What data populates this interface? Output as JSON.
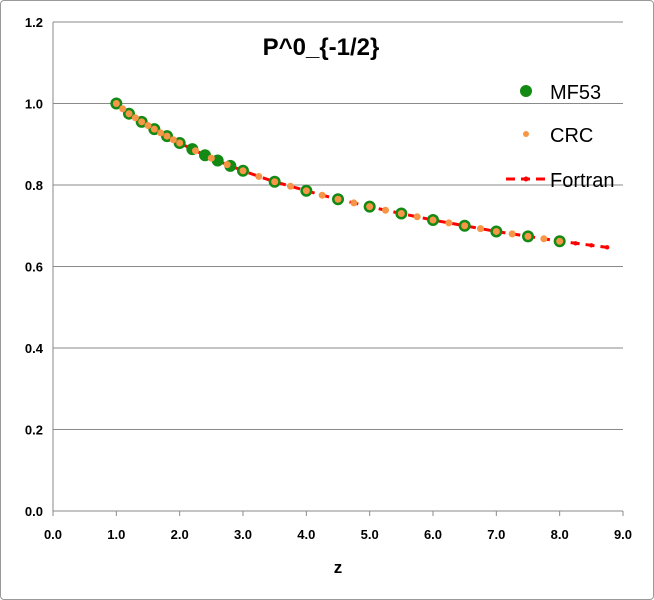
{
  "chart_data": {
    "type": "scatter",
    "title": "P^0_{-1/2}",
    "xlabel": "z",
    "ylabel": "",
    "xlim": [
      0,
      9
    ],
    "ylim": [
      0,
      1.2
    ],
    "xticks": [
      "0.0",
      "1.0",
      "2.0",
      "3.0",
      "4.0",
      "5.0",
      "6.0",
      "7.0",
      "8.0",
      "9.0"
    ],
    "yticks": [
      "0.0",
      "0.2",
      "0.4",
      "0.6",
      "0.8",
      "1.0",
      "1.2"
    ],
    "grid": "horizontal",
    "legend": "right",
    "series": [
      {
        "name": "MF53",
        "style": "marker",
        "color": "#138a13",
        "x": [
          1.0,
          1.2,
          1.4,
          1.6,
          1.8,
          2.0,
          2.2,
          2.4,
          2.6,
          2.8,
          3.0,
          3.5,
          4.0,
          4.5,
          5.0,
          5.5,
          6.0,
          6.5,
          7.0,
          7.5,
          8.0
        ],
        "y": [
          1.0,
          0.975,
          0.955,
          0.937,
          0.92,
          0.903,
          0.888,
          0.873,
          0.86,
          0.847,
          0.835,
          0.808,
          0.786,
          0.765,
          0.747,
          0.73,
          0.714,
          0.7,
          0.686,
          0.674,
          0.662
        ]
      },
      {
        "name": "CRC",
        "style": "marker",
        "color": "#f79646",
        "x": [
          1.0,
          1.1,
          1.2,
          1.3,
          1.4,
          1.5,
          1.6,
          1.7,
          1.8,
          1.9,
          2.0,
          2.25,
          2.5,
          2.75,
          3.0,
          3.25,
          3.5,
          3.75,
          4.0,
          4.25,
          4.5,
          4.75,
          5.0,
          5.25,
          5.5,
          5.75,
          6.0,
          6.25,
          6.5,
          6.75,
          7.0,
          7.25,
          7.5,
          7.75,
          8.0
        ],
        "y": [
          1.0,
          0.987,
          0.975,
          0.965,
          0.955,
          0.946,
          0.937,
          0.928,
          0.92,
          0.911,
          0.903,
          0.884,
          0.866,
          0.85,
          0.835,
          0.821,
          0.808,
          0.797,
          0.786,
          0.775,
          0.765,
          0.756,
          0.747,
          0.738,
          0.73,
          0.722,
          0.714,
          0.707,
          0.7,
          0.693,
          0.686,
          0.68,
          0.674,
          0.668,
          0.662
        ]
      },
      {
        "name": "Fortran",
        "style": "dashed-line",
        "color": "#ff0000",
        "x": [
          1.0,
          1.25,
          1.5,
          1.75,
          2.0,
          2.25,
          2.5,
          2.75,
          3.0,
          3.25,
          3.5,
          3.75,
          4.0,
          4.25,
          4.5,
          4.75,
          5.0,
          5.25,
          5.5,
          5.75,
          6.0,
          6.25,
          6.5,
          6.75,
          7.0,
          7.25,
          7.5,
          7.75,
          8.0,
          8.25,
          8.5,
          8.75
        ],
        "y": [
          1.0,
          0.97,
          0.946,
          0.924,
          0.903,
          0.884,
          0.866,
          0.85,
          0.835,
          0.821,
          0.808,
          0.797,
          0.786,
          0.775,
          0.765,
          0.756,
          0.747,
          0.738,
          0.73,
          0.722,
          0.714,
          0.707,
          0.7,
          0.693,
          0.686,
          0.68,
          0.674,
          0.668,
          0.662,
          0.657,
          0.652,
          0.647
        ]
      }
    ]
  }
}
